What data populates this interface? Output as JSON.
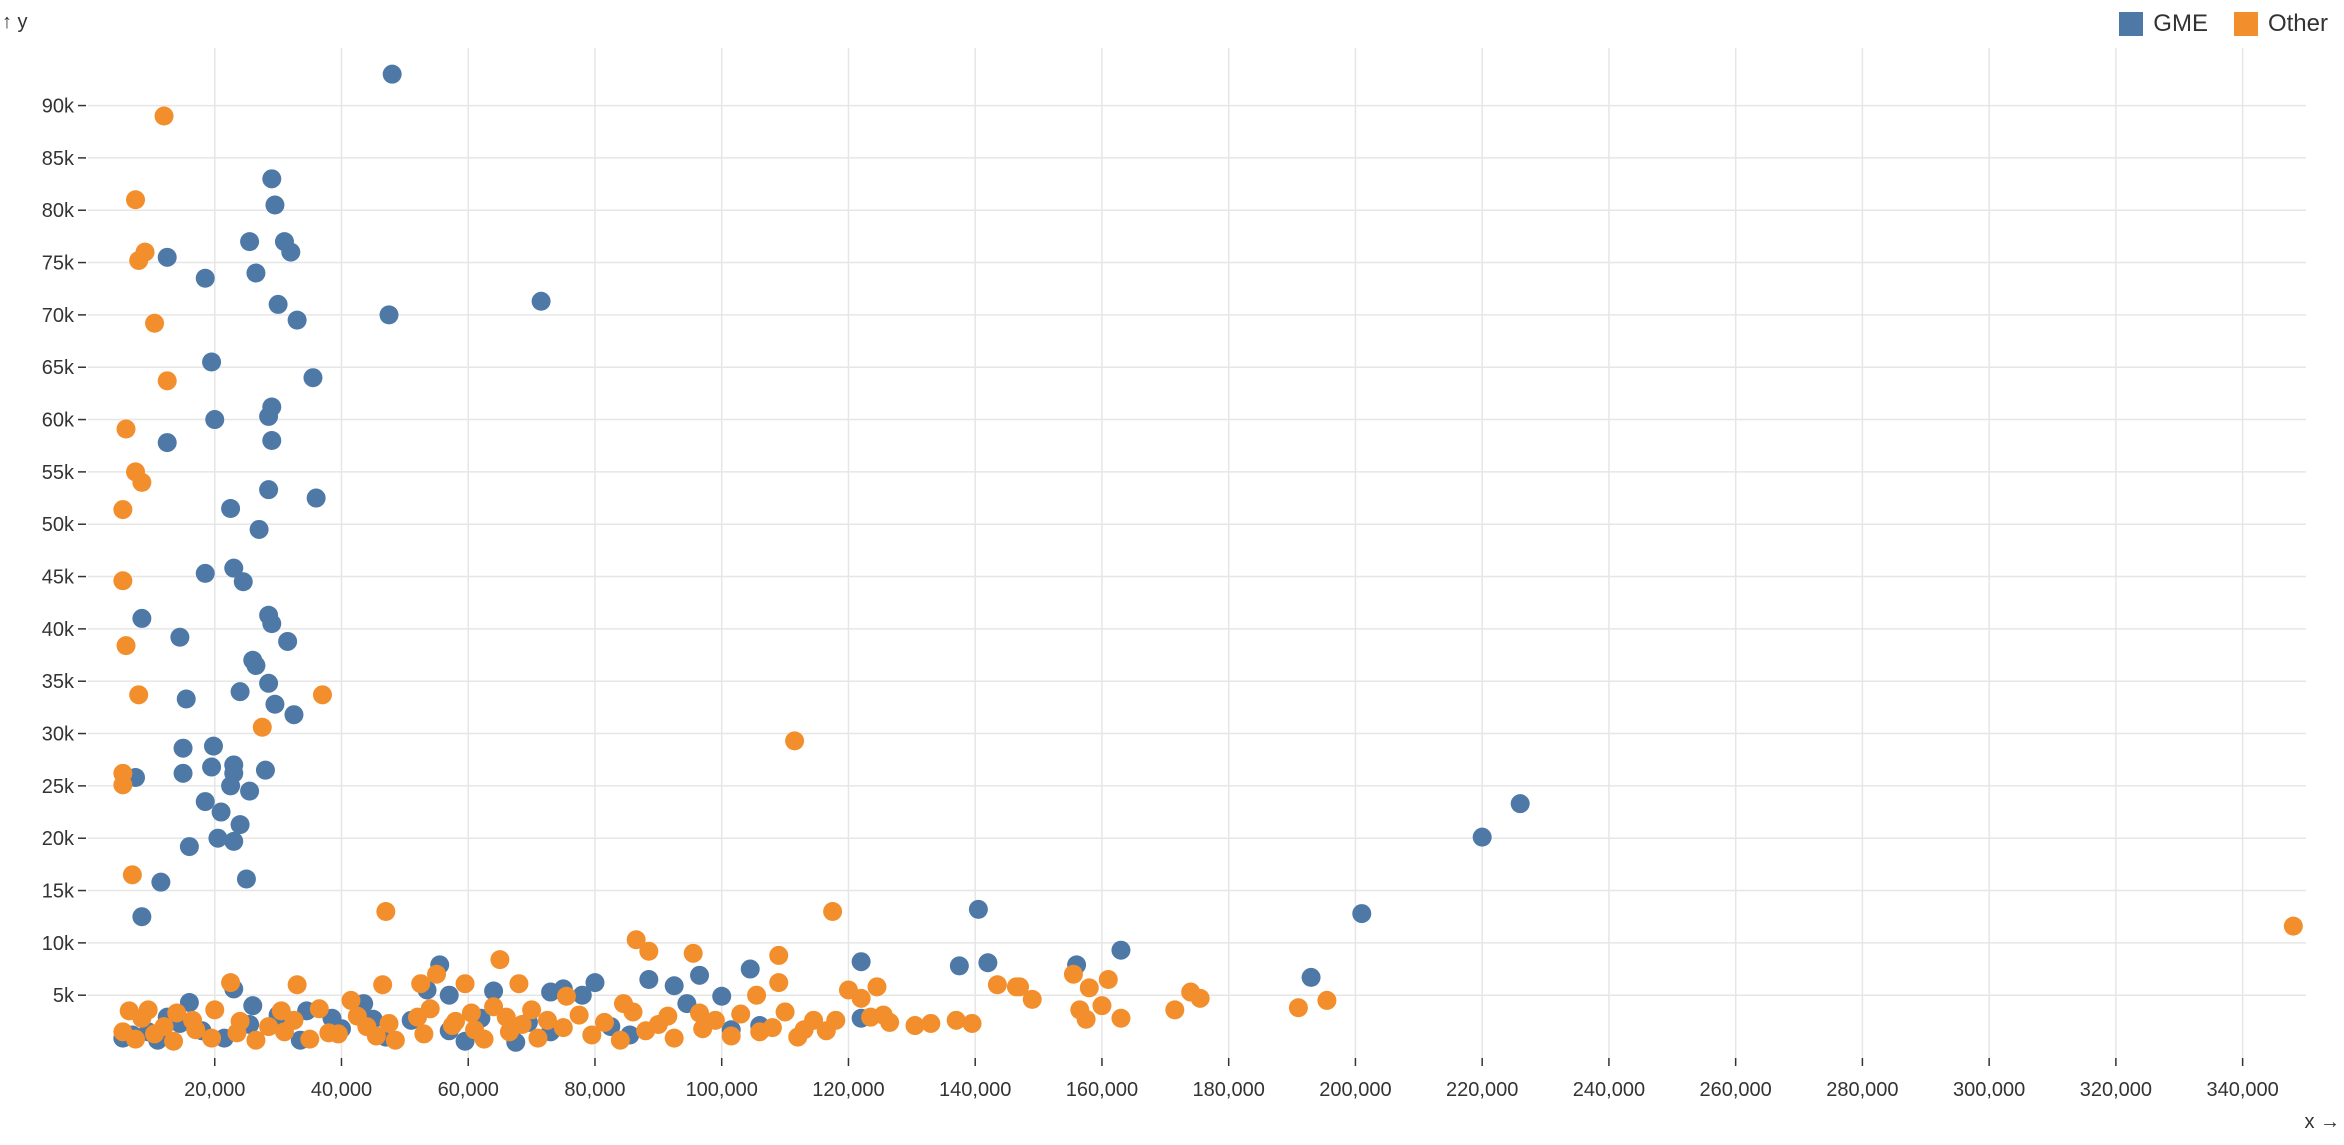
{
  "chart_data": {
    "type": "scatter",
    "xlabel": "x →",
    "ylabel": "↑ y",
    "xlim": [
      0,
      350000
    ],
    "ylim": [
      -1000,
      95500
    ],
    "x_ticks": [
      20000,
      40000,
      60000,
      80000,
      100000,
      120000,
      140000,
      160000,
      180000,
      200000,
      220000,
      240000,
      260000,
      280000,
      300000,
      320000,
      340000
    ],
    "x_tick_labels": [
      "20,000",
      "40,000",
      "60,000",
      "80,000",
      "100,000",
      "120,000",
      "140,000",
      "160,000",
      "180,000",
      "200,000",
      "220,000",
      "240,000",
      "260,000",
      "280,000",
      "300,000",
      "320,000",
      "340,000"
    ],
    "y_ticks": [
      5000,
      10000,
      15000,
      20000,
      25000,
      30000,
      35000,
      40000,
      45000,
      50000,
      55000,
      60000,
      65000,
      70000,
      75000,
      80000,
      85000,
      90000
    ],
    "y_tick_labels": [
      "5k",
      "10k",
      "15k",
      "20k",
      "25k",
      "30k",
      "35k",
      "40k",
      "45k",
      "50k",
      "55k",
      "60k",
      "65k",
      "70k",
      "75k",
      "80k",
      "85k",
      "90k"
    ],
    "grid": true,
    "legend_position": "top-right",
    "series": [
      {
        "name": "GME",
        "color": "#4e79a7",
        "points": [
          [
            48000,
            93000
          ],
          [
            29000,
            83000
          ],
          [
            29500,
            80500
          ],
          [
            25500,
            77000
          ],
          [
            31000,
            77000
          ],
          [
            32000,
            76000
          ],
          [
            12500,
            75500
          ],
          [
            18500,
            73500
          ],
          [
            26500,
            74000
          ],
          [
            30000,
            71000
          ],
          [
            47500,
            70000
          ],
          [
            71500,
            71300
          ],
          [
            33000,
            69500
          ],
          [
            19500,
            65500
          ],
          [
            35500,
            64000
          ],
          [
            29000,
            61200
          ],
          [
            28500,
            60300
          ],
          [
            20000,
            60000
          ],
          [
            29000,
            58000
          ],
          [
            12500,
            57800
          ],
          [
            28500,
            53300
          ],
          [
            36000,
            52500
          ],
          [
            22500,
            51500
          ],
          [
            27000,
            49500
          ],
          [
            23000,
            45800
          ],
          [
            18500,
            45300
          ],
          [
            24500,
            44500
          ],
          [
            28500,
            41300
          ],
          [
            8500,
            41000
          ],
          [
            29000,
            40500
          ],
          [
            14500,
            39200
          ],
          [
            31500,
            38800
          ],
          [
            26000,
            37000
          ],
          [
            26500,
            36500
          ],
          [
            28500,
            34800
          ],
          [
            24000,
            34000
          ],
          [
            15500,
            33300
          ],
          [
            29500,
            32800
          ],
          [
            32500,
            31800
          ],
          [
            15000,
            28600
          ],
          [
            19800,
            28800
          ],
          [
            23000,
            27000
          ],
          [
            19500,
            26800
          ],
          [
            28000,
            26500
          ],
          [
            15000,
            26200
          ],
          [
            7500,
            25800
          ],
          [
            23000,
            26200
          ],
          [
            22500,
            25000
          ],
          [
            25500,
            24500
          ],
          [
            18500,
            23500
          ],
          [
            21000,
            22500
          ],
          [
            24000,
            21300
          ],
          [
            20500,
            20000
          ],
          [
            23000,
            19700
          ],
          [
            16000,
            19200
          ],
          [
            25000,
            16100
          ],
          [
            11500,
            15800
          ],
          [
            8500,
            12500
          ],
          [
            226000,
            23300
          ],
          [
            220000,
            20100
          ],
          [
            201000,
            12800
          ],
          [
            140500,
            13200
          ],
          [
            163000,
            9300
          ],
          [
            193000,
            6700
          ],
          [
            156000,
            7900
          ],
          [
            137500,
            7800
          ],
          [
            142000,
            8100
          ],
          [
            122000,
            8200
          ],
          [
            104500,
            7500
          ],
          [
            96500,
            6900
          ],
          [
            88500,
            6500
          ],
          [
            92500,
            5900
          ],
          [
            100000,
            4900
          ],
          [
            94500,
            4200
          ],
          [
            80000,
            6200
          ],
          [
            78000,
            5000
          ],
          [
            75000,
            5600
          ],
          [
            73000,
            5300
          ],
          [
            64000,
            5400
          ],
          [
            57000,
            5000
          ],
          [
            53500,
            5500
          ],
          [
            55500,
            7900
          ],
          [
            43500,
            4200
          ],
          [
            23000,
            5600
          ],
          [
            16000,
            4300
          ],
          [
            26000,
            4000
          ],
          [
            34500,
            3500
          ],
          [
            45000,
            2700
          ],
          [
            62000,
            2800
          ],
          [
            69500,
            2400
          ],
          [
            82500,
            2000
          ],
          [
            101500,
            1700
          ],
          [
            106000,
            2100
          ],
          [
            122000,
            2800
          ],
          [
            73000,
            1500
          ],
          [
            57000,
            1600
          ],
          [
            38500,
            2800
          ],
          [
            30000,
            3100
          ],
          [
            14500,
            2300
          ],
          [
            9500,
            1500
          ],
          [
            5500,
            900
          ],
          [
            7000,
            1200
          ],
          [
            11000,
            700
          ],
          [
            18000,
            1600
          ],
          [
            21500,
            900
          ],
          [
            33500,
            700
          ],
          [
            47000,
            1000
          ],
          [
            59500,
            600
          ],
          [
            67500,
            500
          ],
          [
            85500,
            1200
          ],
          [
            40000,
            1800
          ],
          [
            51000,
            2600
          ],
          [
            25500,
            2200
          ],
          [
            12500,
            2900
          ]
        ]
      },
      {
        "name": "Other",
        "color": "#f28e2c",
        "points": [
          [
            12000,
            89000
          ],
          [
            7500,
            81000
          ],
          [
            9000,
            76000
          ],
          [
            8000,
            75200
          ],
          [
            10500,
            69200
          ],
          [
            12500,
            63700
          ],
          [
            6000,
            59100
          ],
          [
            7500,
            55000
          ],
          [
            8500,
            54000
          ],
          [
            5500,
            51400
          ],
          [
            5500,
            44600
          ],
          [
            6000,
            38400
          ],
          [
            8000,
            33700
          ],
          [
            37000,
            33700
          ],
          [
            27500,
            30600
          ],
          [
            111500,
            29300
          ],
          [
            5500,
            26200
          ],
          [
            5500,
            25100
          ],
          [
            7000,
            16500
          ],
          [
            47000,
            13000
          ],
          [
            117500,
            13000
          ],
          [
            348000,
            11600
          ],
          [
            86500,
            10300
          ],
          [
            88500,
            9200
          ],
          [
            95500,
            9000
          ],
          [
            109000,
            8800
          ],
          [
            65000,
            8400
          ],
          [
            55000,
            7000
          ],
          [
            155500,
            7000
          ],
          [
            161000,
            6500
          ],
          [
            143500,
            6000
          ],
          [
            147000,
            5800
          ],
          [
            124500,
            5800
          ],
          [
            120000,
            5500
          ],
          [
            109000,
            6200
          ],
          [
            22500,
            6200
          ],
          [
            33000,
            6000
          ],
          [
            46500,
            6000
          ],
          [
            52500,
            6100
          ],
          [
            59500,
            6100
          ],
          [
            68000,
            6100
          ],
          [
            105500,
            5000
          ],
          [
            75500,
            4900
          ],
          [
            149000,
            4600
          ],
          [
            122000,
            4700
          ],
          [
            158000,
            5700
          ],
          [
            174000,
            5300
          ],
          [
            175500,
            4700
          ],
          [
            160000,
            4000
          ],
          [
            156500,
            3600
          ],
          [
            171500,
            3600
          ],
          [
            191000,
            3800
          ],
          [
            195500,
            4500
          ],
          [
            163000,
            2800
          ],
          [
            157500,
            2700
          ],
          [
            137000,
            2600
          ],
          [
            139500,
            2300
          ],
          [
            130500,
            2100
          ],
          [
            126500,
            2400
          ],
          [
            118000,
            2600
          ],
          [
            113000,
            1700
          ],
          [
            108000,
            1900
          ],
          [
            99000,
            2600
          ],
          [
            90000,
            2200
          ],
          [
            84500,
            4200
          ],
          [
            70000,
            3600
          ],
          [
            64000,
            3900
          ],
          [
            60500,
            3300
          ],
          [
            54000,
            3700
          ],
          [
            41500,
            4500
          ],
          [
            36500,
            3700
          ],
          [
            30500,
            3500
          ],
          [
            20000,
            3600
          ],
          [
            14000,
            3300
          ],
          [
            9500,
            3600
          ],
          [
            6500,
            3500
          ],
          [
            5500,
            1500
          ],
          [
            7500,
            800
          ],
          [
            10500,
            1300
          ],
          [
            13500,
            600
          ],
          [
            17000,
            1700
          ],
          [
            19500,
            900
          ],
          [
            23500,
            1400
          ],
          [
            26500,
            700
          ],
          [
            31000,
            1500
          ],
          [
            35000,
            800
          ],
          [
            39500,
            1300
          ],
          [
            44000,
            2000
          ],
          [
            48500,
            700
          ],
          [
            53000,
            1300
          ],
          [
            57500,
            2100
          ],
          [
            62500,
            800
          ],
          [
            66500,
            1500
          ],
          [
            71000,
            900
          ],
          [
            75000,
            1900
          ],
          [
            79500,
            1200
          ],
          [
            84000,
            700
          ],
          [
            88000,
            1600
          ],
          [
            92500,
            900
          ],
          [
            97000,
            1800
          ],
          [
            101500,
            1100
          ],
          [
            106000,
            1500
          ],
          [
            112000,
            1000
          ],
          [
            116500,
            1600
          ],
          [
            123500,
            2900
          ],
          [
            133000,
            2300
          ],
          [
            24000,
            2500
          ],
          [
            28500,
            2000
          ],
          [
            32500,
            2600
          ],
          [
            42500,
            3000
          ],
          [
            47500,
            2300
          ],
          [
            52000,
            2900
          ],
          [
            58000,
            2500
          ],
          [
            66000,
            2900
          ],
          [
            72500,
            2600
          ],
          [
            77500,
            3100
          ],
          [
            81500,
            2400
          ],
          [
            86000,
            3400
          ],
          [
            91500,
            3000
          ],
          [
            96500,
            3300
          ],
          [
            103000,
            3200
          ],
          [
            110000,
            3400
          ],
          [
            114500,
            2600
          ],
          [
            125500,
            3100
          ],
          [
            146500,
            5800
          ],
          [
            12000,
            2000
          ],
          [
            8500,
            2800
          ],
          [
            16500,
            2600
          ],
          [
            38000,
            1400
          ],
          [
            45500,
            1100
          ],
          [
            61000,
            1700
          ],
          [
            68500,
            2200
          ]
        ]
      }
    ]
  }
}
